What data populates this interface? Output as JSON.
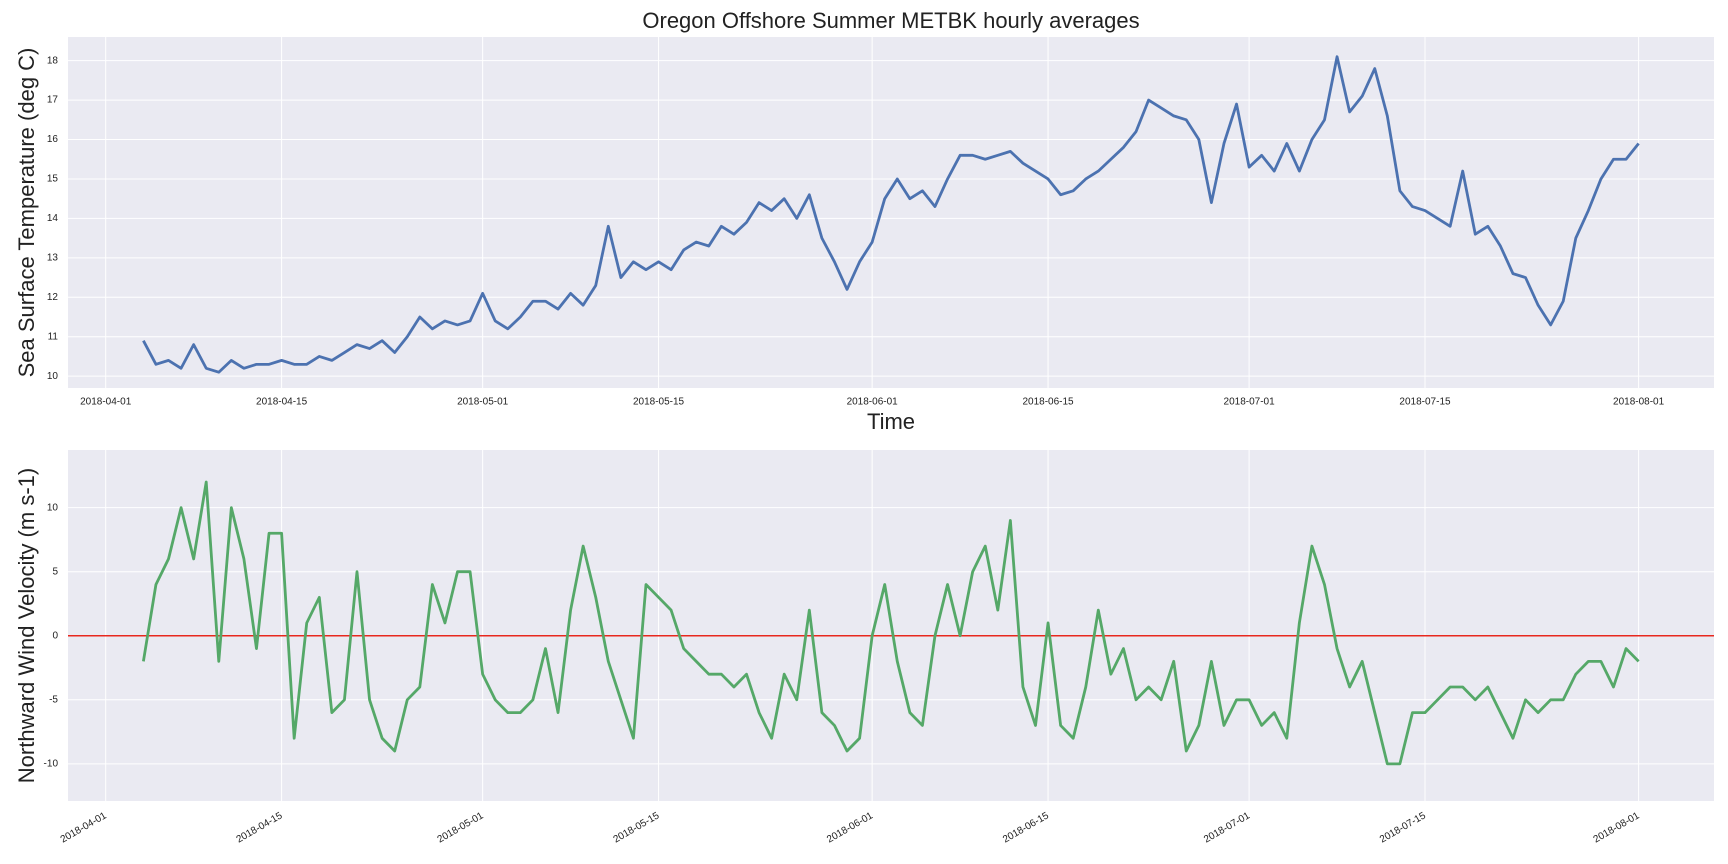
{
  "chart_data": [
    {
      "type": "line",
      "title": "Oregon Offshore Summer METBK hourly averages",
      "ylabel": "Sea Surface Temperature (deg C)",
      "xlabel": "Time",
      "color": "#4c72b0",
      "grid": true,
      "x": [
        "2018-04-04",
        "2018-04-05",
        "2018-04-06",
        "2018-04-07",
        "2018-04-08",
        "2018-04-09",
        "2018-04-10",
        "2018-04-11",
        "2018-04-12",
        "2018-04-13",
        "2018-04-14",
        "2018-04-15",
        "2018-04-16",
        "2018-04-17",
        "2018-04-18",
        "2018-04-19",
        "2018-04-20",
        "2018-04-21",
        "2018-04-22",
        "2018-04-23",
        "2018-04-24",
        "2018-04-25",
        "2018-04-26",
        "2018-04-27",
        "2018-04-28",
        "2018-04-29",
        "2018-04-30",
        "2018-05-01",
        "2018-05-02",
        "2018-05-03",
        "2018-05-04",
        "2018-05-05",
        "2018-05-06",
        "2018-05-07",
        "2018-05-08",
        "2018-05-09",
        "2018-05-10",
        "2018-05-11",
        "2018-05-12",
        "2018-05-13",
        "2018-05-14",
        "2018-05-15",
        "2018-05-16",
        "2018-05-17",
        "2018-05-18",
        "2018-05-19",
        "2018-05-20",
        "2018-05-21",
        "2018-05-22",
        "2018-05-23",
        "2018-05-24",
        "2018-05-25",
        "2018-05-26",
        "2018-05-27",
        "2018-05-28",
        "2018-05-29",
        "2018-05-30",
        "2018-05-31",
        "2018-06-01",
        "2018-06-02",
        "2018-06-03",
        "2018-06-04",
        "2018-06-05",
        "2018-06-06",
        "2018-06-07",
        "2018-06-08",
        "2018-06-09",
        "2018-06-10",
        "2018-06-11",
        "2018-06-12",
        "2018-06-13",
        "2018-06-14",
        "2018-06-15",
        "2018-06-16",
        "2018-06-17",
        "2018-06-18",
        "2018-06-19",
        "2018-06-20",
        "2018-06-21",
        "2018-06-22",
        "2018-06-23",
        "2018-06-24",
        "2018-06-25",
        "2018-06-26",
        "2018-06-27",
        "2018-06-28",
        "2018-06-29",
        "2018-06-30",
        "2018-07-01",
        "2018-07-02",
        "2018-07-03",
        "2018-07-04",
        "2018-07-05",
        "2018-07-06",
        "2018-07-07",
        "2018-07-08",
        "2018-07-09",
        "2018-07-10",
        "2018-07-11",
        "2018-07-12",
        "2018-07-13",
        "2018-07-14",
        "2018-07-15",
        "2018-07-16",
        "2018-07-17",
        "2018-07-18",
        "2018-07-19",
        "2018-07-20",
        "2018-07-21",
        "2018-07-22",
        "2018-07-23",
        "2018-07-24",
        "2018-07-25",
        "2018-07-26",
        "2018-07-27",
        "2018-07-28",
        "2018-07-29",
        "2018-07-30",
        "2018-07-31",
        "2018-08-01"
      ],
      "values": [
        10.9,
        10.3,
        10.4,
        10.2,
        10.8,
        10.2,
        10.1,
        10.4,
        10.2,
        10.3,
        10.3,
        10.4,
        10.3,
        10.3,
        10.5,
        10.4,
        10.6,
        10.8,
        10.7,
        10.9,
        10.6,
        11.0,
        11.5,
        11.2,
        11.4,
        11.3,
        11.4,
        12.1,
        11.4,
        11.2,
        11.5,
        11.9,
        11.9,
        11.7,
        12.1,
        11.8,
        12.3,
        13.8,
        12.5,
        12.9,
        12.7,
        12.9,
        12.7,
        13.2,
        13.4,
        13.3,
        13.8,
        13.6,
        13.9,
        14.4,
        14.2,
        14.5,
        14.0,
        14.6,
        13.5,
        12.9,
        12.2,
        12.9,
        13.4,
        14.5,
        15.0,
        14.5,
        14.7,
        14.3,
        15.0,
        15.6,
        15.6,
        15.5,
        15.6,
        15.7,
        15.4,
        15.2,
        15.0,
        14.6,
        14.7,
        15.0,
        15.2,
        15.5,
        15.8,
        16.2,
        17.0,
        16.8,
        16.6,
        16.5,
        16.0,
        14.4,
        15.9,
        16.9,
        15.3,
        15.6,
        15.2,
        15.9,
        15.2,
        16.0,
        16.5,
        18.1,
        16.7,
        17.1,
        17.8,
        16.6,
        14.7,
        14.3,
        14.2,
        14.0,
        13.8,
        15.2,
        13.6,
        13.8,
        13.3,
        12.6,
        12.5,
        11.8,
        11.3,
        11.9,
        13.5,
        14.2,
        15.0,
        15.5,
        15.5,
        15.9
      ],
      "xlim": [
        "2018-03-29",
        "2018-08-07"
      ],
      "xticks": [
        "2018-04-01",
        "2018-04-15",
        "2018-05-01",
        "2018-05-15",
        "2018-06-01",
        "2018-06-15",
        "2018-07-01",
        "2018-07-15",
        "2018-08-01"
      ],
      "ylim": [
        9.7,
        18.6
      ],
      "yticks": [
        10,
        11,
        12,
        13,
        14,
        15,
        16,
        17,
        18
      ]
    },
    {
      "type": "line",
      "ylabel": "Northward Wind Velocity (m s-1)",
      "color": "#55a868",
      "grid": true,
      "hline": 0,
      "hline_color": "#e8281e",
      "xtick_rotation": -30,
      "x": [
        "2018-04-04",
        "2018-04-05",
        "2018-04-06",
        "2018-04-07",
        "2018-04-08",
        "2018-04-09",
        "2018-04-10",
        "2018-04-11",
        "2018-04-12",
        "2018-04-13",
        "2018-04-14",
        "2018-04-15",
        "2018-04-16",
        "2018-04-17",
        "2018-04-18",
        "2018-04-19",
        "2018-04-20",
        "2018-04-21",
        "2018-04-22",
        "2018-04-23",
        "2018-04-24",
        "2018-04-25",
        "2018-04-26",
        "2018-04-27",
        "2018-04-28",
        "2018-04-29",
        "2018-04-30",
        "2018-05-01",
        "2018-05-02",
        "2018-05-03",
        "2018-05-04",
        "2018-05-05",
        "2018-05-06",
        "2018-05-07",
        "2018-05-08",
        "2018-05-09",
        "2018-05-10",
        "2018-05-11",
        "2018-05-12",
        "2018-05-13",
        "2018-05-14",
        "2018-05-15",
        "2018-05-16",
        "2018-05-17",
        "2018-05-18",
        "2018-05-19",
        "2018-05-20",
        "2018-05-21",
        "2018-05-22",
        "2018-05-23",
        "2018-05-24",
        "2018-05-25",
        "2018-05-26",
        "2018-05-27",
        "2018-05-28",
        "2018-05-29",
        "2018-05-30",
        "2018-05-31",
        "2018-06-01",
        "2018-06-02",
        "2018-06-03",
        "2018-06-04",
        "2018-06-05",
        "2018-06-06",
        "2018-06-07",
        "2018-06-08",
        "2018-06-09",
        "2018-06-10",
        "2018-06-11",
        "2018-06-12",
        "2018-06-13",
        "2018-06-14",
        "2018-06-15",
        "2018-06-16",
        "2018-06-17",
        "2018-06-18",
        "2018-06-19",
        "2018-06-20",
        "2018-06-21",
        "2018-06-22",
        "2018-06-23",
        "2018-06-24",
        "2018-06-25",
        "2018-06-26",
        "2018-06-27",
        "2018-06-28",
        "2018-06-29",
        "2018-06-30",
        "2018-07-01",
        "2018-07-02",
        "2018-07-03",
        "2018-07-04",
        "2018-07-05",
        "2018-07-06",
        "2018-07-07",
        "2018-07-08",
        "2018-07-09",
        "2018-07-10",
        "2018-07-11",
        "2018-07-12",
        "2018-07-13",
        "2018-07-14",
        "2018-07-15",
        "2018-07-16",
        "2018-07-17",
        "2018-07-18",
        "2018-07-19",
        "2018-07-20",
        "2018-07-21",
        "2018-07-22",
        "2018-07-23",
        "2018-07-24",
        "2018-07-25",
        "2018-07-26",
        "2018-07-27",
        "2018-07-28",
        "2018-07-29",
        "2018-07-30",
        "2018-07-31",
        "2018-08-01"
      ],
      "values": [
        -2,
        4,
        6,
        10,
        6,
        12,
        -2,
        10,
        6,
        -1,
        8,
        8,
        -8,
        1,
        3,
        -6,
        -5,
        5,
        -5,
        -8,
        -9,
        -5,
        -4,
        4,
        1,
        5,
        5,
        -3,
        -5,
        -6,
        -6,
        -5,
        -1,
        -6,
        2,
        7,
        3,
        -2,
        -5,
        -8,
        4,
        3,
        2,
        -1,
        -2,
        -3,
        -3,
        -4,
        -3,
        -6,
        -8,
        -3,
        -5,
        2,
        -6,
        -7,
        -9,
        -8,
        0,
        4,
        -2,
        -6,
        -7,
        0,
        4,
        0,
        5,
        7,
        2,
        9,
        -4,
        -7,
        1,
        -7,
        -8,
        -4,
        2,
        -3,
        -1,
        -5,
        -4,
        -5,
        -2,
        -9,
        -7,
        -2,
        -7,
        -5,
        -5,
        -7,
        -6,
        -8,
        1,
        7,
        4,
        -1,
        -4,
        -2,
        -6,
        -10,
        -10,
        -6,
        -6,
        -5,
        -4,
        -4,
        -5,
        -4,
        -6,
        -8,
        -5,
        -6,
        -5,
        -5,
        -3,
        -2,
        -2,
        -4,
        -1,
        -2
      ],
      "xlim": [
        "2018-03-29",
        "2018-08-07"
      ],
      "xticks": [
        "2018-04-01",
        "2018-04-15",
        "2018-05-01",
        "2018-05-15",
        "2018-06-01",
        "2018-06-15",
        "2018-07-01",
        "2018-07-15",
        "2018-08-01"
      ],
      "ylim": [
        -12.9,
        14.5
      ],
      "yticks": [
        -10,
        -5,
        0,
        5,
        10
      ]
    }
  ]
}
